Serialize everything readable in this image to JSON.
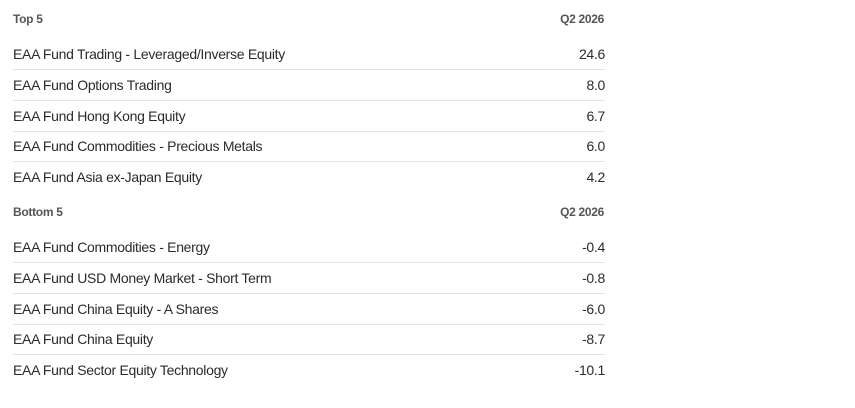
{
  "tables": [
    {
      "header": [
        "Top 5",
        "Q2 2026"
      ],
      "rows": [
        [
          "EAA Fund Trading - Leveraged/Inverse Equity",
          "24.6"
        ],
        [
          "EAA Fund Options Trading",
          "8.0"
        ],
        [
          "EAA Fund Hong Kong Equity",
          "6.7"
        ],
        [
          "EAA Fund Commodities - Precious Metals",
          "6.0"
        ],
        [
          "EAA Fund Asia ex-Japan Equity",
          "4.2"
        ]
      ]
    },
    {
      "header": [
        "Bottom 5",
        "Q2 2026"
      ],
      "rows": [
        [
          "EAA Fund Commodities - Energy",
          "-0.4"
        ],
        [
          "EAA Fund USD Money Market - Short Term",
          "-0.8"
        ],
        [
          "EAA Fund China Equity - A Shares",
          "-6.0"
        ],
        [
          "EAA Fund China Equity",
          "-8.7"
        ],
        [
          "EAA Fund Sector Equity Technology",
          "-10.1"
        ]
      ]
    }
  ]
}
